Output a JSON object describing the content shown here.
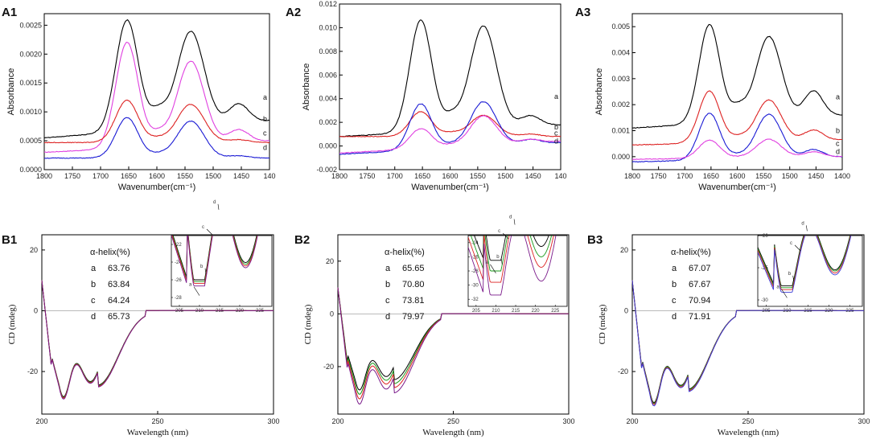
{
  "chart_data": [
    {
      "id": "A1",
      "type": "line",
      "panel_label": "A1",
      "xlabel": "Wavenumber(cm⁻¹)",
      "ylabel": "Absorbance",
      "xlim": [
        1800,
        1400
      ],
      "ylim": [
        0,
        0.0027
      ],
      "xticks": [
        "1800",
        "1750",
        "1700",
        "1650",
        "1600",
        "1550",
        "1500",
        "1450",
        "140"
      ],
      "yticks": [
        "0.0000",
        "0.0005",
        "0.0010",
        "0.0015",
        "0.0020",
        "0.0025"
      ],
      "series": [
        {
          "name": "a",
          "color": "#000000",
          "label_y": 0.00125,
          "base": 0.00055,
          "rise": 3e-05,
          "p1": 0.00193,
          "p2": 0.00165,
          "v": 0.00115,
          "t": 0.00033
        },
        {
          "name": "b",
          "color": "#e040e0",
          "label_y": 0.00088,
          "base": 0.0003,
          "rise": 2e-05,
          "p1": 0.00183,
          "p2": 0.00145,
          "v": 0.0008,
          "t": 0.00022
        },
        {
          "name": "c",
          "color": "#dd2222",
          "label_y": 0.00063,
          "base": 0.00047,
          "rise": 0.0,
          "p1": 0.00073,
          "p2": 0.00066,
          "v": 0.00025,
          "t": 5e-05
        },
        {
          "name": "d",
          "color": "#1a1ad4",
          "label_y": 0.00038,
          "base": 0.0002,
          "rise": 0.0,
          "p1": 0.0007,
          "p2": 0.00064,
          "v": 0.00023,
          "t": 4e-05
        }
      ]
    },
    {
      "id": "A2",
      "type": "line",
      "panel_label": "A2",
      "xlabel": "Wavenumber(cm⁻¹)",
      "ylabel": "Absorbance",
      "xlim": [
        1800,
        1400
      ],
      "ylim": [
        -0.002,
        0.012
      ],
      "xticks": [
        "1800",
        "1750",
        "1700",
        "1650",
        "1600",
        "1550",
        "1500",
        "1450",
        "140"
      ],
      "yticks": [
        "-0.002",
        "0.000",
        "0.002",
        "0.004",
        "0.006",
        "0.008",
        "0.010",
        "0.012"
      ],
      "series": [
        {
          "name": "a",
          "color": "#000000",
          "label_y": 0.0042,
          "base": 0.0008,
          "rise": 0.0001,
          "p1": 0.0095,
          "p2": 0.0087,
          "v": 0.0042,
          "t": 0.0009
        },
        {
          "name": "b",
          "color": "#dd2222",
          "label_y": 0.0016,
          "base": 0.0008,
          "rise": 0.0,
          "p1": 0.0021,
          "p2": 0.0018,
          "v": 0.0011,
          "t": 0.0002
        },
        {
          "name": "c",
          "color": "#1a1ad4",
          "label_y": 0.0011,
          "base": -0.0007,
          "rise": 0.0001,
          "p1": 0.0039,
          "p2": 0.0038,
          "v": 0.001,
          "t": 0.0004
        },
        {
          "name": "d",
          "color": "#e040e0",
          "label_y": 0.0004,
          "base": -0.0006,
          "rise": 0.0001,
          "p1": 0.0017,
          "p2": 0.0025,
          "v": 0.0006,
          "t": 0.0003
        }
      ]
    },
    {
      "id": "A3",
      "type": "line",
      "panel_label": "A3",
      "xlabel": "Wavenumber(cm⁻¹)",
      "ylabel": "Absorbance",
      "xlim": [
        1800,
        1400
      ],
      "ylim": [
        -0.0005,
        0.0055
      ],
      "xticks": [
        "1800",
        "1750",
        "1700",
        "1650",
        "1600",
        "1550",
        "1500",
        "1450",
        "1400"
      ],
      "yticks": [
        "0.000",
        "0.001",
        "0.002",
        "0.003",
        "0.004",
        "0.005"
      ],
      "series": [
        {
          "name": "a",
          "color": "#000000",
          "label_y": 0.0023,
          "base": 0.0011,
          "rise": 5e-05,
          "p1": 0.0038,
          "p2": 0.0032,
          "v": 0.002,
          "t": 0.001
        },
        {
          "name": "b",
          "color": "#dd2222",
          "label_y": 0.001,
          "base": 0.00045,
          "rise": 2e-05,
          "p1": 0.002,
          "p2": 0.0016,
          "v": 0.0007,
          "t": 0.0004
        },
        {
          "name": "c",
          "color": "#1a1ad4",
          "label_y": 0.0005,
          "base": -0.0002,
          "rise": 2e-05,
          "p1": 0.0018,
          "p2": 0.0017,
          "v": 0.0005,
          "t": 0.0003
        },
        {
          "name": "d",
          "color": "#e040e0",
          "label_y": 0.0002,
          "base": -0.0001,
          "rise": 1e-05,
          "p1": 0.0007,
          "p2": 0.0007,
          "v": 0.0001,
          "t": 0.0002
        }
      ]
    },
    {
      "id": "B1",
      "type": "line",
      "panel_label": "B1",
      "xlabel": "Wavelength (nm)",
      "ylabel": "CD (mdeg)",
      "xlim": [
        200,
        300
      ],
      "ylim": [
        -34,
        25
      ],
      "xticks": [
        "200",
        "250",
        "300"
      ],
      "yticks": [
        "20",
        "0",
        "-20"
      ],
      "legend_title": "α-helix(%)",
      "legend": [
        {
          "k": "a",
          "v": "63.76"
        },
        {
          "k": "b",
          "v": "63.84"
        },
        {
          "k": "c",
          "v": "64.24"
        },
        {
          "k": "d",
          "v": "65.73"
        }
      ],
      "inset": {
        "xlim": [
          203,
          228
        ],
        "ylim": [
          -29,
          -21
        ],
        "xticks": [
          "205",
          "210",
          "215",
          "220",
          "225"
        ],
        "yticks": [
          "-22",
          "-24",
          "-26",
          "-28"
        ]
      },
      "series": [
        {
          "name": "a",
          "color": "#000000",
          "min": -26.0,
          "dip": -24.5
        },
        {
          "name": "b",
          "color": "#1a9a1a",
          "min": -26.2,
          "dip": -24.7
        },
        {
          "name": "c",
          "color": "#dd2222",
          "min": -26.4,
          "dip": -24.9
        },
        {
          "name": "d",
          "color": "#7a1a8a",
          "min": -26.7,
          "dip": -25.1
        }
      ]
    },
    {
      "id": "B2",
      "type": "line",
      "panel_label": "B2",
      "xlabel": "Wavelength (nm)",
      "ylabel": "CD (mdeg)",
      "xlim": [
        200,
        300
      ],
      "ylim": [
        -38,
        30
      ],
      "xticks": [
        "200",
        "250",
        "300"
      ],
      "yticks": [
        "20",
        "0",
        "-20"
      ],
      "legend_title": "α-helix(%)",
      "legend": [
        {
          "k": "a",
          "v": "65.65"
        },
        {
          "k": "b",
          "v": "70.80"
        },
        {
          "k": "c",
          "v": "73.81"
        },
        {
          "k": "d",
          "v": "79.97"
        }
      ],
      "inset": {
        "xlim": [
          203,
          228
        ],
        "ylim": [
          -33,
          -23
        ],
        "xticks": [
          "205",
          "210",
          "215",
          "220",
          "225"
        ],
        "yticks": [
          "-24",
          "-26",
          "-28",
          "-30",
          "-32"
        ]
      },
      "series": [
        {
          "name": "a",
          "color": "#000000",
          "min": -26.5,
          "dip": -25.0
        },
        {
          "name": "b",
          "color": "#1a9a1a",
          "min": -28.0,
          "dip": -26.5
        },
        {
          "name": "c",
          "color": "#dd2222",
          "min": -29.6,
          "dip": -28.0
        },
        {
          "name": "d",
          "color": "#7a1a8a",
          "min": -31.4,
          "dip": -30.0
        }
      ]
    },
    {
      "id": "B3",
      "type": "line",
      "panel_label": "B3",
      "xlabel": "Wavelength (nm)",
      "ylabel": "CD (mdeg)",
      "xlim": [
        200,
        300
      ],
      "ylim": [
        -34,
        25
      ],
      "xticks": [
        "200",
        "250",
        "300"
      ],
      "yticks": [
        "20",
        "0",
        "-20"
      ],
      "legend_title": "α-helix(%)",
      "legend": [
        {
          "k": "a",
          "v": "67.07"
        },
        {
          "k": "b",
          "v": "67.67"
        },
        {
          "k": "c",
          "v": "70.94"
        },
        {
          "k": "d",
          "v": "71.91"
        }
      ],
      "inset": {
        "xlim": [
          203,
          228
        ],
        "ylim": [
          -31,
          -20
        ],
        "xticks": [
          "205",
          "210",
          "215",
          "220",
          "225"
        ],
        "yticks": [
          "-20",
          "-25",
          "-30"
        ]
      },
      "series": [
        {
          "name": "a",
          "color": "#000000",
          "min": -27.8,
          "dip": -25.8
        },
        {
          "name": "b",
          "color": "#1a9a1a",
          "min": -28.1,
          "dip": -26.0
        },
        {
          "name": "c",
          "color": "#dd2222",
          "min": -28.4,
          "dip": -26.3
        },
        {
          "name": "d",
          "color": "#3a3ad4",
          "min": -28.8,
          "dip": -26.6
        }
      ]
    }
  ]
}
